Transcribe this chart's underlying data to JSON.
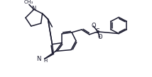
{
  "bg_color": "#ffffff",
  "line_color": "#1a1a2e",
  "line_width": 1.1,
  "font_size": 6.5,
  "figsize": [
    2.14,
    1.09
  ],
  "dpi": 100,
  "xlim": [
    0,
    214
  ],
  "ylim": [
    0,
    109
  ]
}
